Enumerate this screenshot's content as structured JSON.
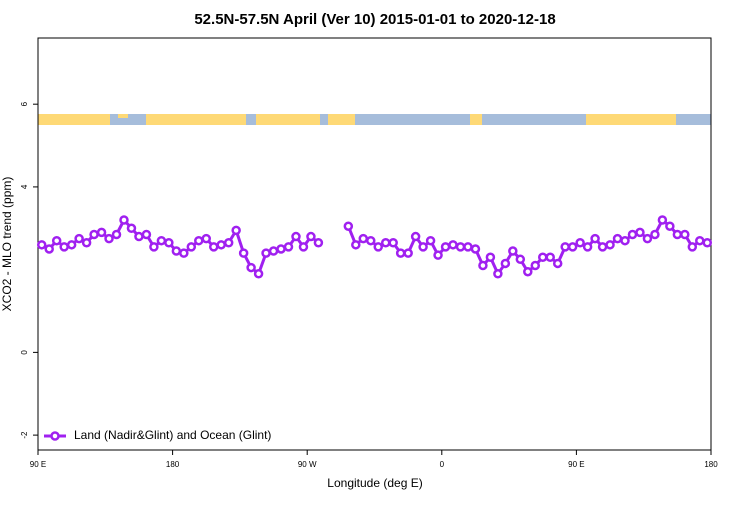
{
  "chart_data": {
    "type": "line",
    "title": "52.5N-57.5N April (Ver 10)   2015-01-01 to 2020-12-18",
    "xlabel": "Longitude (deg E)",
    "ylabel": "XCO2 - MLO trend (ppm)",
    "xlim": [
      90,
      540
    ],
    "ylim": [
      -2.36,
      7.6
    ],
    "xticks": [
      {
        "value": 90,
        "label": "90 E"
      },
      180,
      {
        "value": 270,
        "label": "90 W"
      },
      {
        "value": 360,
        "label": "0"
      },
      {
        "value": 450,
        "label": "90 E"
      },
      {
        "value": 540,
        "label": "180"
      }
    ],
    "yticks": [
      -2,
      0,
      4,
      6
    ],
    "legend": "bottom-left",
    "x": [
      92.5,
      97.5,
      102.5,
      107.5,
      112.5,
      117.5,
      122.5,
      127.5,
      132.5,
      137.5,
      142.5,
      147.5,
      152.5,
      157.5,
      162.5,
      167.5,
      172.5,
      177.5,
      182.5,
      187.5,
      192.5,
      197.5,
      202.5,
      207.5,
      212.5,
      217.5,
      222.5,
      227.5,
      232.5,
      237.5,
      242.5,
      247.5,
      252.5,
      257.5,
      262.5,
      267.5,
      272.5,
      277.5,
      282.5,
      287.5,
      292.5,
      297.5,
      302.5,
      307.5,
      312.5,
      317.5,
      322.5,
      327.5,
      332.5,
      337.5,
      342.5,
      347.5,
      352.5,
      357.5,
      362.5,
      367.5,
      372.5,
      377.5,
      382.5,
      387.5,
      392.5,
      397.5,
      402.5,
      407.5,
      412.5,
      417.5,
      422.5,
      427.5,
      432.5,
      437.5,
      442.5,
      447.5,
      452.5,
      457.5,
      462.5,
      467.5,
      472.5,
      477.5,
      482.5,
      487.5,
      492.5,
      497.5,
      502.5,
      507.5,
      512.5,
      517.5,
      522.5,
      527.5,
      532.5,
      537.5
    ],
    "series": [
      {
        "name": "Land (Nadir&Glint) and Ocean (Glint)",
        "color": "#a020f0",
        "values": [
          2.6,
          2.5,
          2.7,
          2.55,
          2.6,
          2.75,
          2.65,
          2.85,
          2.9,
          2.75,
          2.85,
          3.2,
          3.0,
          2.8,
          2.85,
          2.55,
          2.7,
          2.65,
          2.45,
          2.4,
          2.55,
          2.7,
          2.75,
          2.55,
          2.6,
          2.65,
          2.95,
          2.4,
          2.05,
          1.9,
          2.4,
          2.45,
          2.5,
          2.55,
          2.8,
          2.55,
          2.8,
          2.65,
          null,
          null,
          null,
          3.05,
          2.6,
          2.75,
          2.7,
          2.55,
          2.65,
          2.65,
          2.4,
          2.4,
          2.8,
          2.55,
          2.7,
          2.35,
          2.55,
          2.6,
          2.55,
          2.55,
          2.5,
          2.1,
          2.3,
          1.9,
          2.15,
          2.45,
          2.25,
          1.95,
          2.1,
          2.3,
          2.3,
          2.15,
          2.55,
          2.55,
          2.65,
          2.55,
          2.75,
          2.55,
          2.6,
          2.75,
          2.7,
          2.85,
          2.9,
          2.75,
          2.85,
          3.2,
          3.05,
          2.85,
          2.85,
          2.55,
          2.7,
          2.65
        ]
      }
    ]
  }
}
